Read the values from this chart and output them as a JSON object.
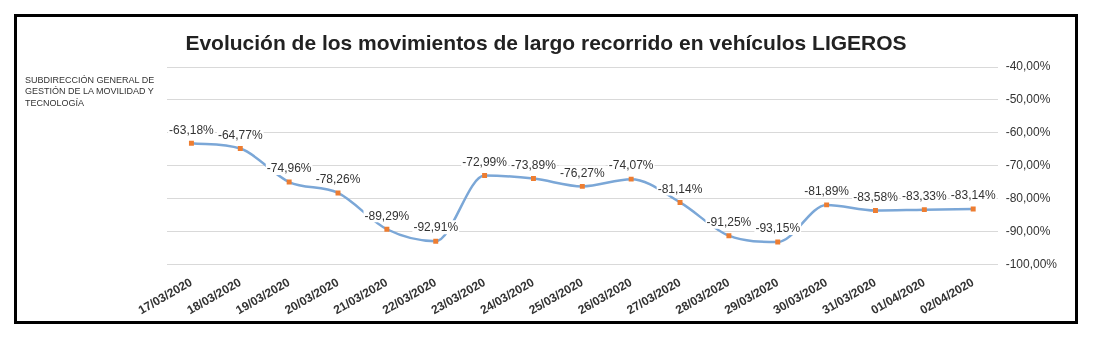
{
  "chart_data": {
    "type": "line",
    "title": "Evolución de los movimientos de largo recorrido en vehículos LIGEROS",
    "annotations": [
      "SUBDIRECCIÓN GENERAL DE GESTIÓN DE LA MOVILIDAD Y TECNOLOGÍA"
    ],
    "categories": [
      "17/03/2020",
      "18/03/2020",
      "19/03/2020",
      "20/03/2020",
      "21/03/2020",
      "22/03/2020",
      "23/03/2020",
      "24/03/2020",
      "25/03/2020",
      "26/03/2020",
      "27/03/2020",
      "28/03/2020",
      "29/03/2020",
      "30/03/2020",
      "31/03/2020",
      "01/04/2020",
      "02/04/2020"
    ],
    "series": [
      {
        "color": "#7ba7d7",
        "colors": [
          "#ed7d31",
          "#ed7d31",
          "#ed7d31",
          "#ed7d31",
          "#ed7d31",
          "#ed7d31",
          "#ed7d31",
          "#ed7d31",
          "#ed7d31",
          "#ed7d31",
          "#ed7d31",
          "#ed7d31",
          "#ed7d31",
          "#ed7d31",
          "#ed7d31",
          "#ed7d31",
          "#ed7d31"
        ],
        "values": [
          -63.18,
          -64.77,
          -74.96,
          -78.26,
          -89.29,
          -92.91,
          -72.99,
          -73.89,
          -76.27,
          -74.07,
          -81.14,
          -91.25,
          -93.15,
          -81.89,
          -83.58,
          -83.33,
          -83.14
        ],
        "value_labels": [
          "-63,18%",
          "-64,77%",
          "-74,96%",
          "-78,26%",
          "-89,29%",
          "-92,91%",
          "-72,99%",
          "-73,89%",
          "-76,27%",
          "-74,07%",
          "-81,14%",
          "-91,25%",
          "-93,15%",
          "-81,89%",
          "-83,58%",
          "-83,33%",
          "-83,14%"
        ]
      }
    ],
    "ylim": [
      -100,
      -40
    ],
    "yticks": [
      {
        "value": -40,
        "label": "-40,00%"
      },
      {
        "value": -50,
        "label": "-50,00%"
      },
      {
        "value": -60,
        "label": "-60,00%"
      },
      {
        "value": -70,
        "label": "-70,00%"
      },
      {
        "value": -80,
        "label": "-80,00%"
      },
      {
        "value": -90,
        "label": "-90,00%"
      },
      {
        "value": -100,
        "label": "-100,00%"
      }
    ],
    "grid": "y",
    "legend": false,
    "marker": "square",
    "line_style": "solid"
  }
}
